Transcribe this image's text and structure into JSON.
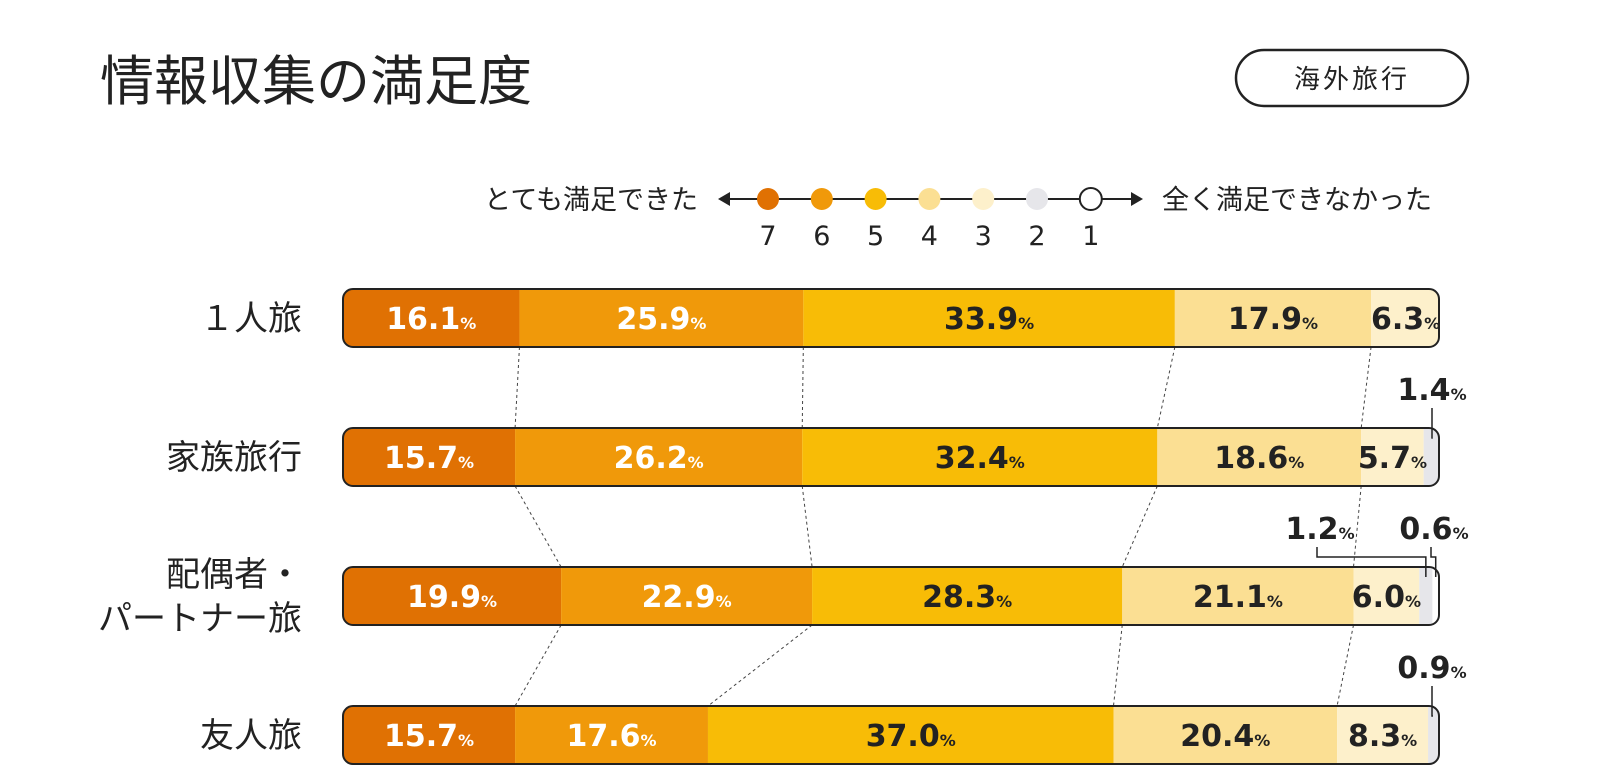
{
  "header": {
    "title": "情報収集の満足度",
    "badge": "海外旅行"
  },
  "legend": {
    "left_label": "とても満足できた",
    "right_label": "全く満足できなかった",
    "scale": [
      "7",
      "6",
      "5",
      "4",
      "3",
      "2",
      "1"
    ]
  },
  "colors": {
    "7": "#E07103",
    "6": "#F0990A",
    "5": "#F8BC06",
    "4": "#FBDF93",
    "3": "#FDF0CB",
    "2": "#E6E6EA",
    "1": "#FFFFFF",
    "outline": "#222222"
  },
  "chart_data": {
    "type": "bar",
    "orientation": "horizontal",
    "stacked": true,
    "percent_sign": "%",
    "categories": [
      "１人旅",
      "家族旅行",
      "配偶者・パートナー旅",
      "友人旅"
    ],
    "series": [
      {
        "name": "7",
        "values": [
          16.1,
          15.7,
          19.9,
          15.7
        ]
      },
      {
        "name": "6",
        "values": [
          25.9,
          26.2,
          22.9,
          17.6
        ]
      },
      {
        "name": "5",
        "values": [
          33.9,
          32.4,
          28.3,
          37.0
        ]
      },
      {
        "name": "4",
        "values": [
          17.9,
          18.6,
          21.1,
          20.4
        ]
      },
      {
        "name": "3",
        "values": [
          6.3,
          5.7,
          6.0,
          8.3
        ]
      },
      {
        "name": "2",
        "values": [
          0,
          1.4,
          1.2,
          0.9
        ]
      },
      {
        "name": "1",
        "values": [
          0,
          0,
          0.6,
          0
        ]
      }
    ],
    "xlim": [
      0,
      100
    ]
  }
}
